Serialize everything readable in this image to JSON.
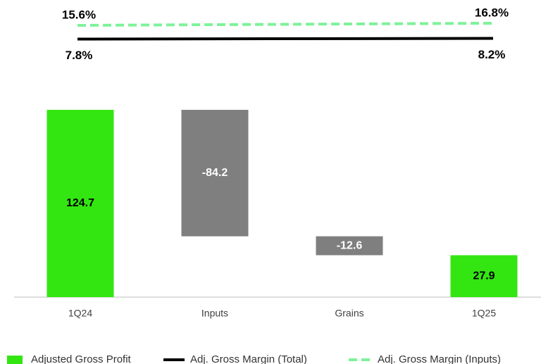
{
  "chart_data": {
    "type": "waterfall",
    "categories": [
      "1Q24",
      "Inputs",
      "Grains",
      "1Q25"
    ],
    "series": [
      {
        "name": "Adjusted Gross Profit",
        "color": "#33e612",
        "values": [
          124.7,
          -84.2,
          -12.6,
          27.9
        ]
      }
    ],
    "decrease_color": "#7f7f7f",
    "lines": [
      {
        "name": "Adj. Gross Margin (Total)",
        "color": "#000000",
        "style": "solid",
        "x": [
          "1Q24",
          "1Q25"
        ],
        "values": [
          7.8,
          8.2
        ],
        "value_labels": [
          "7.8%",
          "8.2%"
        ]
      },
      {
        "name": "Adj. Gross Margin (Inputs)",
        "color": "#7ef29a",
        "style": "dashed",
        "x": [
          "1Q24",
          "1Q25"
        ],
        "values": [
          15.6,
          16.8
        ],
        "value_labels": [
          "15.6%",
          "16.8%"
        ]
      }
    ]
  }
}
